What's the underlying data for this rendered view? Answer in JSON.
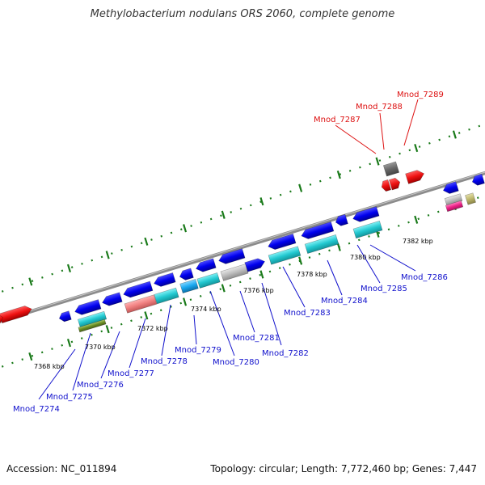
{
  "title": "Methylobacterium nodulans ORS 2060, complete genome",
  "footer": {
    "accession": "Accession: NC_011894",
    "summary": "Topology: circular; Length: 7,772,460 bp; Genes: 7,447"
  },
  "scale_ticks": [
    "7368 kbp",
    "7370 kbp",
    "7372 kbp",
    "7374 kbp",
    "7376 kbp",
    "7378 kbp",
    "7380 kbp",
    "7382 kbp"
  ],
  "genes": [
    {
      "id": "Mnod_7274",
      "color": "#0000cc"
    },
    {
      "id": "Mnod_7275",
      "color": "#0000cc"
    },
    {
      "id": "Mnod_7276",
      "color": "#0000cc"
    },
    {
      "id": "Mnod_7277",
      "color": "#0000cc"
    },
    {
      "id": "Mnod_7278",
      "color": "#0000cc"
    },
    {
      "id": "Mnod_7279",
      "color": "#0000cc"
    },
    {
      "id": "Mnod_7280",
      "color": "#0000cc"
    },
    {
      "id": "Mnod_7281",
      "color": "#0000cc"
    },
    {
      "id": "Mnod_7282",
      "color": "#0000cc"
    },
    {
      "id": "Mnod_7283",
      "color": "#0000cc"
    },
    {
      "id": "Mnod_7284",
      "color": "#0000cc"
    },
    {
      "id": "Mnod_7285",
      "color": "#0000cc"
    },
    {
      "id": "Mnod_7286",
      "color": "#0000cc"
    },
    {
      "id": "Mnod_7287",
      "color": "#cc0000"
    },
    {
      "id": "Mnod_7288",
      "color": "#cc0000"
    },
    {
      "id": "Mnod_7289",
      "color": "#cc0000"
    }
  ],
  "colors": {
    "axis": "#8c8c8c",
    "tick": "#1a7a1a",
    "forward_gene": "#0000ee",
    "rna_gene": "#ee1111",
    "cyan_feature": "#22c8d0",
    "pink_feature": "#f08080",
    "gray_feature": "#bdbdbd",
    "olive_feature": "#6b8e23",
    "magenta_feature": "#ee2288",
    "tan_feature": "#bdb76b"
  }
}
